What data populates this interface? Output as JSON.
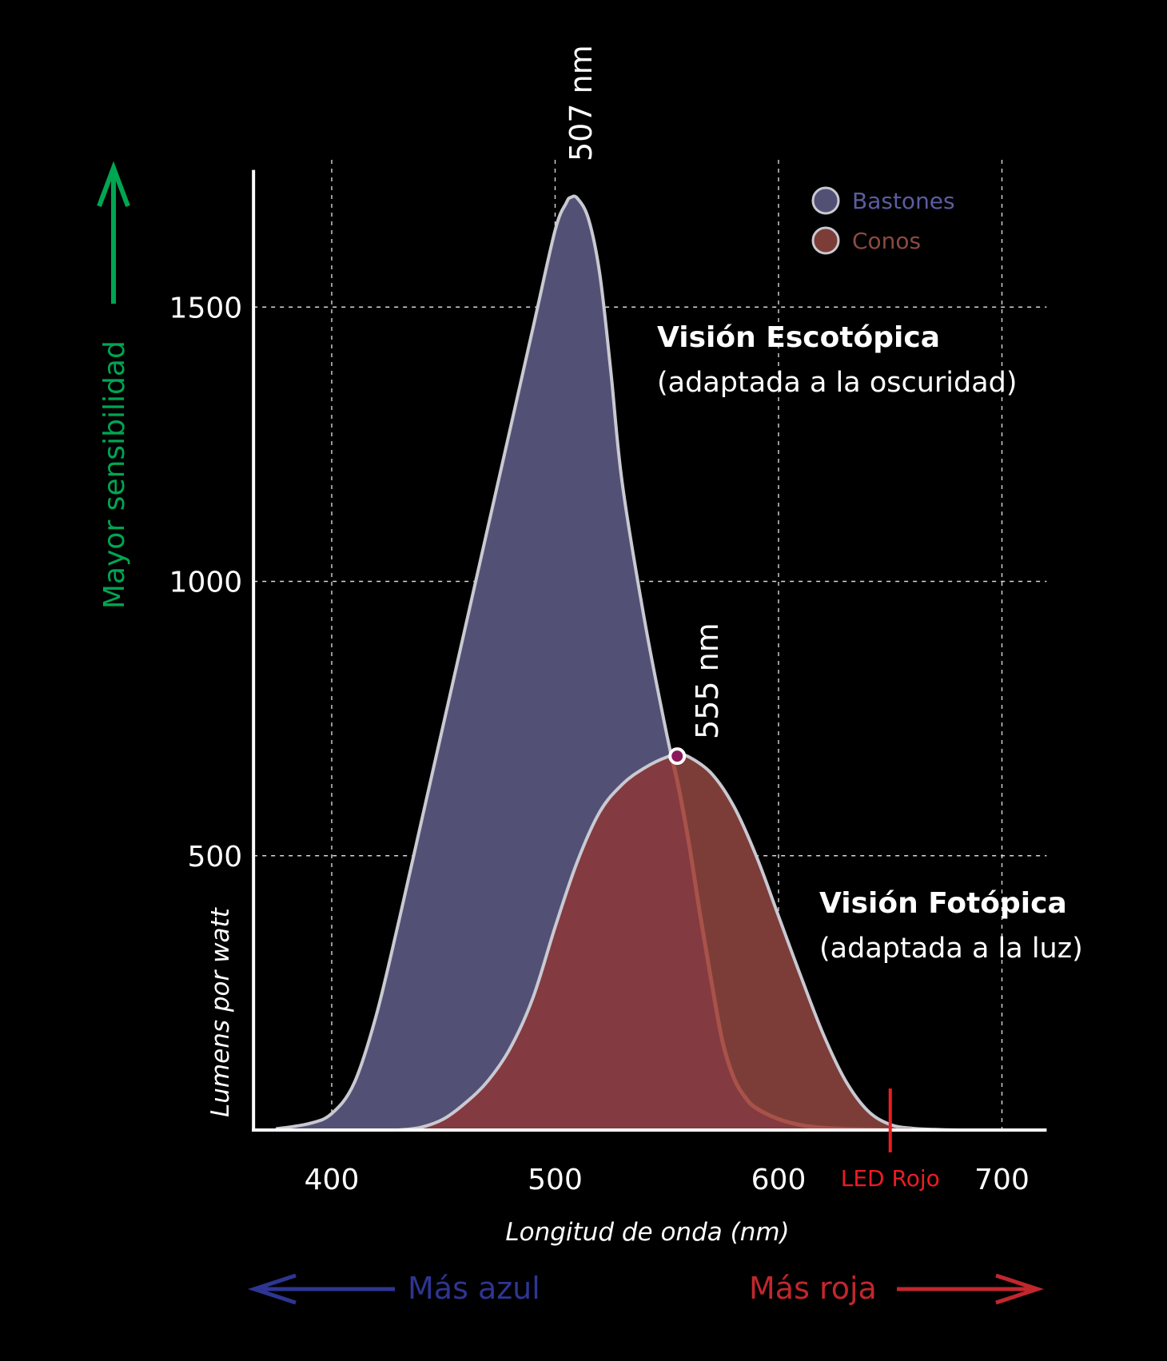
{
  "chart_data": {
    "type": "area",
    "xlabel": "Longitud de onda (nm)",
    "ylabel": "Lumens por watt",
    "xlim": [
      365,
      720
    ],
    "ylim": [
      0,
      1750
    ],
    "x_ticks": [
      400,
      500,
      600,
      700
    ],
    "y_ticks": [
      500,
      1000,
      1500
    ],
    "grid": true,
    "legend_position": "top-right",
    "series": [
      {
        "name": "Bastones",
        "color": "#525175",
        "x": [
          375,
          390,
          400,
          410,
          420,
          430,
          440,
          450,
          460,
          470,
          480,
          490,
          500,
          505,
          507,
          510,
          515,
          520,
          525,
          530,
          540,
          550,
          555,
          560,
          565,
          570,
          575,
          580,
          585,
          590,
          600,
          610,
          620,
          630,
          640,
          650,
          660,
          670,
          680
        ],
        "values": [
          2,
          12,
          30,
          85,
          210,
          380,
          560,
          740,
          920,
          1100,
          1280,
          1460,
          1640,
          1690,
          1700,
          1698,
          1660,
          1560,
          1380,
          1180,
          930,
          720,
          630,
          520,
          390,
          270,
          160,
          95,
          60,
          40,
          20,
          9,
          4,
          2,
          1,
          0,
          0,
          0,
          0
        ]
      },
      {
        "name": "Conos",
        "color": "#7c3d38",
        "x": [
          430,
          440,
          450,
          460,
          470,
          480,
          490,
          500,
          510,
          520,
          530,
          540,
          550,
          555,
          560,
          570,
          580,
          590,
          600,
          610,
          620,
          630,
          640,
          650,
          660,
          670,
          680,
          690
        ],
        "values": [
          0,
          5,
          20,
          50,
          90,
          150,
          240,
          370,
          490,
          580,
          630,
          660,
          680,
          683,
          680,
          650,
          590,
          500,
          390,
          280,
          175,
          90,
          35,
          10,
          3,
          1,
          0,
          0
        ]
      }
    ],
    "annotations": {
      "peak_rods": "507 nm",
      "peak_cones": "555 nm",
      "scotopic_title": "Visión Escotópica",
      "scotopic_sub": "(adaptada a la oscuridad)",
      "photopic_title": "Visión Fotópica",
      "photopic_sub": "(adaptada a la luz)",
      "led_label": "LED Rojo",
      "led_wavelength": 650,
      "sensitivity_label": "Mayor sensibilidad",
      "blue_label": "Más azul",
      "red_label": "Más roja"
    }
  },
  "colors": {
    "background": "#000000",
    "axis": "#ffffff",
    "rods_fill": "#525175",
    "cones_fill": "#7c3d38",
    "overlap_fill": "#833a40",
    "curve_stroke": "#c9c9d2",
    "green_arrow": "#00a651",
    "blue_arrow": "#2e3592",
    "red_arrow": "#c1272d",
    "led_line": "#ed1c24",
    "peak_marker": "#8b1a5a"
  }
}
